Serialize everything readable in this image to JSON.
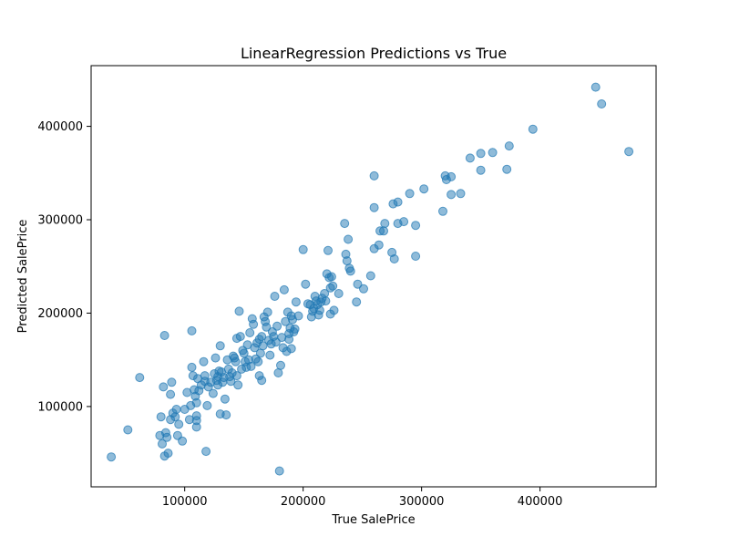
{
  "chart_data": {
    "type": "scatter",
    "title": "LinearRegression Predictions vs True",
    "xlabel": "True SalePrice",
    "ylabel": "Predicted SalePrice",
    "xlim": [
      21000,
      498000
    ],
    "ylim": [
      14000,
      465000
    ],
    "xticks": [
      100000,
      200000,
      300000,
      400000
    ],
    "yticks": [
      100000,
      200000,
      300000,
      400000
    ],
    "xtick_labels": [
      "100000",
      "200000",
      "300000",
      "400000"
    ],
    "ytick_labels": [
      "100000",
      "200000",
      "300000",
      "400000"
    ],
    "grid": false,
    "color": "#1f77b4",
    "points": [
      [
        38000,
        46000
      ],
      [
        52000,
        75000
      ],
      [
        62000,
        131000
      ],
      [
        79000,
        69000
      ],
      [
        80000,
        89000
      ],
      [
        81000,
        60000
      ],
      [
        82000,
        121000
      ],
      [
        83000,
        176000
      ],
      [
        83000,
        47000
      ],
      [
        84000,
        72000
      ],
      [
        85000,
        67000
      ],
      [
        86000,
        50000
      ],
      [
        88000,
        113000
      ],
      [
        88000,
        86000
      ],
      [
        89000,
        126000
      ],
      [
        90000,
        93000
      ],
      [
        92000,
        89000
      ],
      [
        93000,
        97000
      ],
      [
        94000,
        69000
      ],
      [
        95000,
        81000
      ],
      [
        98000,
        63000
      ],
      [
        100000,
        97000
      ],
      [
        102000,
        115000
      ],
      [
        104000,
        86000
      ],
      [
        105000,
        101000
      ],
      [
        106000,
        181000
      ],
      [
        106000,
        142000
      ],
      [
        107000,
        133000
      ],
      [
        108000,
        118000
      ],
      [
        109000,
        111000
      ],
      [
        110000,
        104000
      ],
      [
        110000,
        90000
      ],
      [
        110000,
        85000
      ],
      [
        110000,
        78000
      ],
      [
        111000,
        130000
      ],
      [
        112000,
        117000
      ],
      [
        114000,
        123000
      ],
      [
        116000,
        148000
      ],
      [
        117000,
        133000
      ],
      [
        117000,
        127000
      ],
      [
        118000,
        52000
      ],
      [
        119000,
        101000
      ],
      [
        120000,
        121000
      ],
      [
        122000,
        126000
      ],
      [
        124000,
        114000
      ],
      [
        125000,
        135000
      ],
      [
        126000,
        152000
      ],
      [
        127000,
        128000
      ],
      [
        128000,
        123000
      ],
      [
        128000,
        132000
      ],
      [
        129000,
        138000
      ],
      [
        130000,
        92000
      ],
      [
        130000,
        165000
      ],
      [
        131000,
        137000
      ],
      [
        132000,
        126000
      ],
      [
        133000,
        131000
      ],
      [
        134000,
        108000
      ],
      [
        135000,
        91000
      ],
      [
        136000,
        150000
      ],
      [
        137000,
        140000
      ],
      [
        138000,
        132000
      ],
      [
        139000,
        127000
      ],
      [
        140000,
        136000
      ],
      [
        141000,
        154000
      ],
      [
        142000,
        152000
      ],
      [
        143000,
        148000
      ],
      [
        144000,
        133000
      ],
      [
        144000,
        173000
      ],
      [
        145000,
        123000
      ],
      [
        146000,
        202000
      ],
      [
        147000,
        175000
      ],
      [
        148000,
        140000
      ],
      [
        149000,
        160000
      ],
      [
        150000,
        157000
      ],
      [
        151000,
        148000
      ],
      [
        152000,
        142000
      ],
      [
        153000,
        166000
      ],
      [
        154000,
        150000
      ],
      [
        155000,
        179000
      ],
      [
        156000,
        143000
      ],
      [
        157000,
        194000
      ],
      [
        158000,
        188000
      ],
      [
        159000,
        163000
      ],
      [
        160000,
        151000
      ],
      [
        161000,
        168000
      ],
      [
        162000,
        148000
      ],
      [
        163000,
        133000
      ],
      [
        163000,
        172000
      ],
      [
        164000,
        157000
      ],
      [
        165000,
        175000
      ],
      [
        165000,
        128000
      ],
      [
        166000,
        165000
      ],
      [
        167000,
        196000
      ],
      [
        168000,
        191000
      ],
      [
        169000,
        185000
      ],
      [
        170000,
        201000
      ],
      [
        171000,
        171000
      ],
      [
        172000,
        155000
      ],
      [
        173000,
        167000
      ],
      [
        174000,
        180000
      ],
      [
        175000,
        175000
      ],
      [
        176000,
        218000
      ],
      [
        177000,
        169000
      ],
      [
        178000,
        186000
      ],
      [
        179000,
        136000
      ],
      [
        180000,
        31000
      ],
      [
        181000,
        144000
      ],
      [
        182000,
        174000
      ],
      [
        183000,
        163000
      ],
      [
        184000,
        225000
      ],
      [
        185000,
        191000
      ],
      [
        186000,
        159000
      ],
      [
        187000,
        201000
      ],
      [
        188000,
        178000
      ],
      [
        188000,
        172000
      ],
      [
        189000,
        184000
      ],
      [
        190000,
        197000
      ],
      [
        190000,
        162000
      ],
      [
        191000,
        193000
      ],
      [
        192000,
        180000
      ],
      [
        193000,
        183000
      ],
      [
        194000,
        212000
      ],
      [
        196000,
        197000
      ],
      [
        200000,
        268000
      ],
      [
        202000,
        231000
      ],
      [
        204000,
        210000
      ],
      [
        206000,
        209000
      ],
      [
        207000,
        196000
      ],
      [
        208000,
        202000
      ],
      [
        209000,
        205000
      ],
      [
        210000,
        218000
      ],
      [
        211000,
        213000
      ],
      [
        212000,
        209000
      ],
      [
        213000,
        198000
      ],
      [
        214000,
        203000
      ],
      [
        215000,
        212000
      ],
      [
        216000,
        216000
      ],
      [
        218000,
        221000
      ],
      [
        219000,
        213000
      ],
      [
        220000,
        242000
      ],
      [
        221000,
        267000
      ],
      [
        222000,
        238000
      ],
      [
        223000,
        227000
      ],
      [
        223000,
        199000
      ],
      [
        224000,
        239000
      ],
      [
        225000,
        229000
      ],
      [
        226000,
        203000
      ],
      [
        230000,
        221000
      ],
      [
        235000,
        296000
      ],
      [
        236000,
        263000
      ],
      [
        237000,
        256000
      ],
      [
        238000,
        279000
      ],
      [
        239000,
        248000
      ],
      [
        240000,
        245000
      ],
      [
        245000,
        212000
      ],
      [
        246000,
        231000
      ],
      [
        251000,
        226000
      ],
      [
        257000,
        240000
      ],
      [
        260000,
        347000
      ],
      [
        260000,
        313000
      ],
      [
        260000,
        269000
      ],
      [
        264000,
        273000
      ],
      [
        265000,
        288000
      ],
      [
        268000,
        288000
      ],
      [
        269000,
        296000
      ],
      [
        275000,
        265000
      ],
      [
        276000,
        317000
      ],
      [
        277000,
        258000
      ],
      [
        280000,
        319000
      ],
      [
        280000,
        296000
      ],
      [
        285000,
        298000
      ],
      [
        290000,
        328000
      ],
      [
        295000,
        294000
      ],
      [
        295000,
        261000
      ],
      [
        302000,
        333000
      ],
      [
        318000,
        309000
      ],
      [
        320000,
        347000
      ],
      [
        321000,
        343000
      ],
      [
        325000,
        346000
      ],
      [
        325000,
        327000
      ],
      [
        333000,
        328000
      ],
      [
        341000,
        366000
      ],
      [
        350000,
        371000
      ],
      [
        350000,
        353000
      ],
      [
        360000,
        372000
      ],
      [
        372000,
        354000
      ],
      [
        374000,
        379000
      ],
      [
        394000,
        397000
      ],
      [
        447000,
        442000
      ],
      [
        452000,
        424000
      ],
      [
        475000,
        373000
      ]
    ]
  }
}
